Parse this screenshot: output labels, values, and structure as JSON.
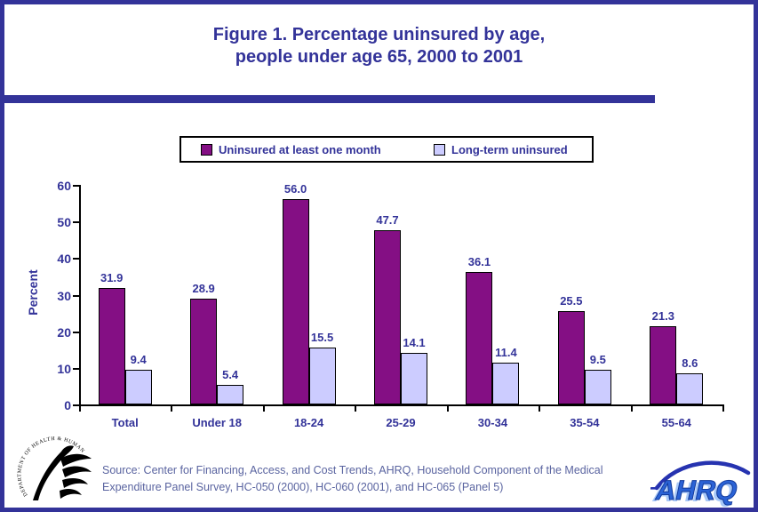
{
  "title": {
    "line1": "Figure 1. Percentage uninsured by age,",
    "line2": "people under age 65, 2000 to 2001"
  },
  "chart_data": {
    "type": "bar",
    "title": "Figure 1. Percentage uninsured by age, people under age 65, 2000 to 2001",
    "categories": [
      "Total",
      "Under 18",
      "18-24",
      "25-29",
      "30-34",
      "35-54",
      "55-64"
    ],
    "series": [
      {
        "name": "Uninsured at least one month",
        "color": "#840f84",
        "values": [
          31.9,
          28.9,
          56.0,
          47.7,
          36.1,
          25.5,
          21.3
        ],
        "labels": [
          "31.9",
          "28.9",
          "56.0",
          "47.7",
          "36.1",
          "25.5",
          "21.3"
        ]
      },
      {
        "name": "Long-term uninsured",
        "color": "#ccccff",
        "values": [
          9.4,
          5.4,
          15.5,
          14.1,
          11.4,
          9.5,
          8.6
        ],
        "labels": [
          "9.4",
          "5.4",
          "15.5",
          "14.1",
          "11.4",
          "9.5",
          "8.6"
        ]
      }
    ],
    "xlabel": "",
    "ylabel": "Percent",
    "ylim": [
      0,
      60
    ],
    "yticks": [
      0,
      10,
      20,
      30,
      40,
      50,
      60
    ],
    "grid": false,
    "legend_position": "top"
  },
  "footer": {
    "source_line1": "Source: Center for Financing, Access, and Cost Trends, AHRQ, Household Component of the Medical",
    "source_line2": "Expenditure Panel Survey, HC-050 (2000), HC-060 (2001), and HC-065 (Panel 5)",
    "hhs_logo_text": "DEPARTMENT OF HEALTH & HUMAN SERVICES • USA",
    "ahrq_logo_text": "AHRQ"
  },
  "colors": {
    "accent": "#333399",
    "bar_series1": "#840f84",
    "bar_series2": "#ccccff",
    "source_text": "#5a64a0",
    "axis": "#000000"
  }
}
